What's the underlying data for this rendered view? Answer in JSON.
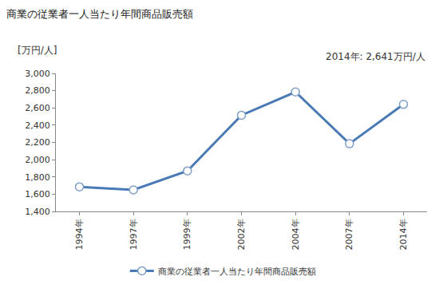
{
  "chart_data": {
    "type": "line",
    "title": "商業の従業者一人当たり年間商品販売額",
    "ylabel": "[万円/人]",
    "annotations": [
      "2014年: 2,641万円/人"
    ],
    "categories": [
      "1994年",
      "1997年",
      "1999年",
      "2002年",
      "2004年",
      "2007年",
      "2014年"
    ],
    "series": [
      {
        "name": "商業の従業者一人当たり年間商品販売額",
        "color": "#4a7ab5",
        "values": [
          1685,
          1650,
          1870,
          2515,
          2785,
          2185,
          2641
        ]
      }
    ],
    "marker": "circle",
    "ylim": [
      1400,
      3000
    ],
    "yticks": [
      {
        "value": 1400,
        "label": "1,400"
      },
      {
        "value": 1600,
        "label": "1,600"
      },
      {
        "value": 1800,
        "label": "1,800"
      },
      {
        "value": 2000,
        "label": "2,000"
      },
      {
        "value": 2200,
        "label": "2,200"
      },
      {
        "value": 2400,
        "label": "2,400"
      },
      {
        "value": 2600,
        "label": "2,600"
      },
      {
        "value": 2800,
        "label": "2,800"
      },
      {
        "value": 3000,
        "label": "3,000"
      }
    ],
    "grid": false,
    "legend": "bottom"
  }
}
